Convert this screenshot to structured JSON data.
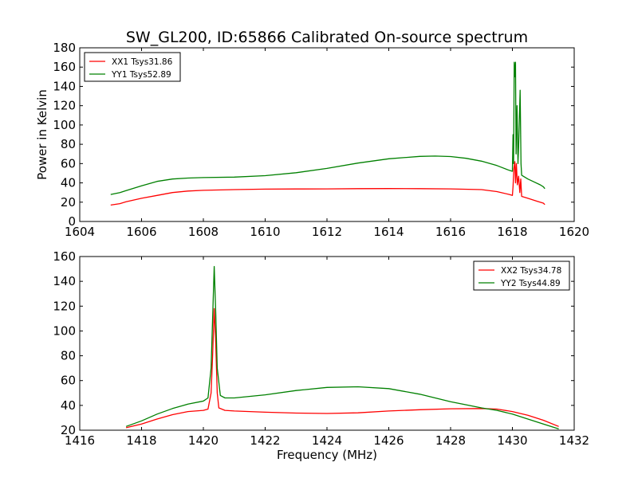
{
  "figure": {
    "title": "SW_GL200, ID:65866 Calibrated On-source spectrum"
  },
  "chart_data": [
    {
      "type": "line",
      "title": "SW_GL200, ID:65866 Calibrated On-source spectrum",
      "xlabel": "",
      "ylabel": "Power in Kelvin",
      "xlim": [
        1604,
        1620
      ],
      "ylim": [
        0,
        180
      ],
      "xticks": [
        1604,
        1606,
        1608,
        1610,
        1612,
        1614,
        1616,
        1618,
        1620
      ],
      "yticks": [
        0,
        20,
        40,
        60,
        80,
        100,
        120,
        140,
        160,
        180
      ],
      "legend": "top-left",
      "grid": false,
      "series": [
        {
          "name": "XX1 Tsys31.86",
          "color": "#ff0000",
          "points": [
            [
              1605.0,
              17
            ],
            [
              1605.3,
              18.5
            ],
            [
              1605.5,
              20.5
            ],
            [
              1606.0,
              24
            ],
            [
              1606.5,
              27
            ],
            [
              1607.0,
              30
            ],
            [
              1607.5,
              31.5
            ],
            [
              1608.0,
              32.3
            ],
            [
              1609.0,
              33
            ],
            [
              1610.0,
              33.5
            ],
            [
              1611.0,
              33.7
            ],
            [
              1612.0,
              33.8
            ],
            [
              1613.0,
              34
            ],
            [
              1614.0,
              34.1
            ],
            [
              1615.0,
              34
            ],
            [
              1616.0,
              33.8
            ],
            [
              1617.0,
              33
            ],
            [
              1617.5,
              31
            ],
            [
              1617.9,
              28
            ],
            [
              1618.0,
              27
            ],
            [
              1618.02,
              36
            ],
            [
              1618.05,
              55
            ],
            [
              1618.08,
              62
            ],
            [
              1618.1,
              40
            ],
            [
              1618.13,
              60
            ],
            [
              1618.16,
              38
            ],
            [
              1618.2,
              47
            ],
            [
              1618.24,
              30
            ],
            [
              1618.27,
              44
            ],
            [
              1618.3,
              26
            ],
            [
              1618.5,
              24
            ],
            [
              1618.8,
              21
            ],
            [
              1619.0,
              19
            ],
            [
              1619.05,
              17.5
            ]
          ]
        },
        {
          "name": "YY1 Tsys52.89",
          "color": "#008000",
          "points": [
            [
              1605.0,
              28
            ],
            [
              1605.3,
              30
            ],
            [
              1605.5,
              32
            ],
            [
              1606.0,
              37
            ],
            [
              1606.5,
              41.5
            ],
            [
              1607.0,
              44
            ],
            [
              1607.5,
              45
            ],
            [
              1608.0,
              45.5
            ],
            [
              1609.0,
              46
            ],
            [
              1610.0,
              47.5
            ],
            [
              1611.0,
              50.5
            ],
            [
              1612.0,
              55
            ],
            [
              1613.0,
              60.5
            ],
            [
              1614.0,
              65
            ],
            [
              1615.0,
              67.5
            ],
            [
              1615.5,
              67.8
            ],
            [
              1616.0,
              67.3
            ],
            [
              1616.5,
              65.5
            ],
            [
              1617.0,
              62.5
            ],
            [
              1617.5,
              58
            ],
            [
              1617.9,
              53
            ],
            [
              1618.0,
              52
            ],
            [
              1618.02,
              90
            ],
            [
              1618.04,
              60
            ],
            [
              1618.06,
              165
            ],
            [
              1618.08,
              150
            ],
            [
              1618.1,
              165
            ],
            [
              1618.12,
              70
            ],
            [
              1618.15,
              120
            ],
            [
              1618.18,
              60
            ],
            [
              1618.2,
              78
            ],
            [
              1618.25,
              136
            ],
            [
              1618.28,
              60
            ],
            [
              1618.3,
              48
            ],
            [
              1618.5,
              44
            ],
            [
              1618.7,
              41
            ],
            [
              1618.9,
              38
            ],
            [
              1619.0,
              36
            ],
            [
              1619.05,
              34
            ]
          ]
        }
      ]
    },
    {
      "type": "line",
      "title": "",
      "xlabel": "Frequency (MHz)",
      "ylabel": "",
      "xlim": [
        1416,
        1432
      ],
      "ylim": [
        20,
        160
      ],
      "xticks": [
        1416,
        1418,
        1420,
        1422,
        1424,
        1426,
        1428,
        1430,
        1432
      ],
      "yticks": [
        20,
        40,
        60,
        80,
        100,
        120,
        140,
        160
      ],
      "legend": "top-right",
      "grid": false,
      "series": [
        {
          "name": "XX2 Tsys34.78",
          "color": "#ff0000",
          "points": [
            [
              1417.5,
              22
            ],
            [
              1418.0,
              25
            ],
            [
              1418.5,
              29
            ],
            [
              1419.0,
              32.5
            ],
            [
              1419.5,
              35
            ],
            [
              1420.0,
              36
            ],
            [
              1420.15,
              37
            ],
            [
              1420.25,
              50
            ],
            [
              1420.3,
              80
            ],
            [
              1420.35,
              118
            ],
            [
              1420.4,
              90
            ],
            [
              1420.45,
              50
            ],
            [
              1420.5,
              38
            ],
            [
              1420.7,
              36
            ],
            [
              1421.0,
              35.5
            ],
            [
              1422.0,
              34.5
            ],
            [
              1423.0,
              33.8
            ],
            [
              1424.0,
              33.5
            ],
            [
              1425.0,
              34
            ],
            [
              1426.0,
              35.5
            ],
            [
              1427.0,
              36.5
            ],
            [
              1428.0,
              37.3
            ],
            [
              1429.0,
              37.5
            ],
            [
              1429.5,
              37
            ],
            [
              1430.0,
              35
            ],
            [
              1430.5,
              32
            ],
            [
              1431.0,
              28
            ],
            [
              1431.5,
              23
            ]
          ]
        },
        {
          "name": "YY2 Tsys44.89",
          "color": "#008000",
          "points": [
            [
              1417.5,
              23
            ],
            [
              1418.0,
              27.5
            ],
            [
              1418.5,
              33
            ],
            [
              1419.0,
              37.5
            ],
            [
              1419.5,
              41
            ],
            [
              1420.0,
              43.5
            ],
            [
              1420.15,
              46
            ],
            [
              1420.25,
              70
            ],
            [
              1420.3,
              110
            ],
            [
              1420.35,
              152
            ],
            [
              1420.4,
              115
            ],
            [
              1420.45,
              70
            ],
            [
              1420.55,
              48
            ],
            [
              1420.7,
              46
            ],
            [
              1421.0,
              46
            ],
            [
              1422.0,
              48.5
            ],
            [
              1423.0,
              52
            ],
            [
              1424.0,
              54.5
            ],
            [
              1425.0,
              55
            ],
            [
              1426.0,
              53.5
            ],
            [
              1427.0,
              49
            ],
            [
              1428.0,
              43
            ],
            [
              1429.0,
              38
            ],
            [
              1429.5,
              36
            ],
            [
              1430.0,
              33
            ],
            [
              1430.5,
              29
            ],
            [
              1431.0,
              25
            ],
            [
              1431.5,
              21
            ]
          ]
        }
      ]
    }
  ]
}
